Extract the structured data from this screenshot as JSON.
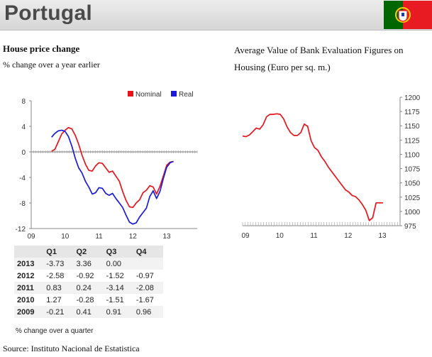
{
  "header": {
    "country": "Portugal"
  },
  "left_chart": {
    "title": "House price change",
    "subtitle": "% change over a year earlier"
  },
  "right_chart": {
    "title": "Average Value of Bank Evaluation Figures on Housing (Euro per sq. m.)"
  },
  "table": {
    "columns": [
      "",
      "Q1",
      "Q2",
      "Q3",
      "Q4"
    ],
    "rows": [
      [
        "2013",
        "-3.73",
        "3.36",
        "0.00",
        ""
      ],
      [
        "2012",
        "-2.58",
        "-0.92",
        "-1.52",
        "-0.97"
      ],
      [
        "2011",
        "0.83",
        "0.24",
        "-3.14",
        "-2.08"
      ],
      [
        "2010",
        "1.27",
        "-0.28",
        "-1.51",
        "-1.67"
      ],
      [
        "2009",
        "-0.21",
        "0.41",
        "0.91",
        "0.96"
      ]
    ],
    "note": "% change over a quarter"
  },
  "source": "Source: Instituto Nacional de Estatistica",
  "colors": {
    "nominal": "#e8141b",
    "real": "#1a1adc",
    "right_line": "#e8141b",
    "flag_green": "#006600",
    "flag_red": "#e81b23"
  },
  "icons": [
    "portugal-flag-icon"
  ],
  "chart_data": [
    {
      "type": "line",
      "title": "House price change",
      "subtitle": "% change over a year earlier",
      "xlabel": "",
      "ylabel": "",
      "ylim": [
        -12,
        8
      ],
      "yticks": [
        "8",
        "4",
        "0",
        "-4",
        "-8",
        "-12"
      ],
      "xticks": [
        "09",
        "10",
        "11",
        "12",
        "13"
      ],
      "legend": "top-right",
      "grid": false,
      "series": [
        {
          "name": "Nominal",
          "points": [
            [
              2009.6,
              0.1
            ],
            [
              2009.7,
              0.4
            ],
            [
              2009.8,
              1.6
            ],
            [
              2009.9,
              2.8
            ],
            [
              2010.0,
              3.4
            ],
            [
              2010.1,
              3.8
            ],
            [
              2010.2,
              3.6
            ],
            [
              2010.3,
              2.6
            ],
            [
              2010.4,
              1.2
            ],
            [
              2010.5,
              -0.5
            ],
            [
              2010.6,
              -1.9
            ],
            [
              2010.7,
              -2.9
            ],
            [
              2010.8,
              -3.0
            ],
            [
              2010.9,
              -2.2
            ],
            [
              2011.0,
              -1.7
            ],
            [
              2011.1,
              -1.8
            ],
            [
              2011.2,
              -2.5
            ],
            [
              2011.3,
              -3.2
            ],
            [
              2011.4,
              -3.0
            ],
            [
              2011.5,
              -3.8
            ],
            [
              2011.6,
              -4.6
            ],
            [
              2011.7,
              -6.2
            ],
            [
              2011.8,
              -7.6
            ],
            [
              2011.9,
              -8.6
            ],
            [
              2012.0,
              -8.7
            ],
            [
              2012.1,
              -8.0
            ],
            [
              2012.2,
              -7.5
            ],
            [
              2012.3,
              -6.4
            ],
            [
              2012.4,
              -6.0
            ],
            [
              2012.5,
              -5.3
            ],
            [
              2012.6,
              -5.5
            ],
            [
              2012.7,
              -6.6
            ],
            [
              2012.8,
              -5.4
            ],
            [
              2012.9,
              -3.8
            ],
            [
              2013.0,
              -2.1
            ],
            [
              2013.1,
              -1.6
            ],
            [
              2013.2,
              -1.5
            ]
          ]
        },
        {
          "name": "Real",
          "points": [
            [
              2009.6,
              2.3
            ],
            [
              2009.7,
              2.9
            ],
            [
              2009.8,
              3.3
            ],
            [
              2009.9,
              3.4
            ],
            [
              2010.0,
              3.2
            ],
            [
              2010.1,
              2.4
            ],
            [
              2010.2,
              0.9
            ],
            [
              2010.3,
              -1.0
            ],
            [
              2010.4,
              -2.5
            ],
            [
              2010.5,
              -3.3
            ],
            [
              2010.6,
              -4.6
            ],
            [
              2010.7,
              -5.5
            ],
            [
              2010.8,
              -6.6
            ],
            [
              2010.9,
              -6.4
            ],
            [
              2011.0,
              -5.6
            ],
            [
              2011.1,
              -5.7
            ],
            [
              2011.2,
              -6.5
            ],
            [
              2011.3,
              -6.8
            ],
            [
              2011.4,
              -6.5
            ],
            [
              2011.5,
              -7.3
            ],
            [
              2011.6,
              -8.0
            ],
            [
              2011.7,
              -8.7
            ],
            [
              2011.8,
              -9.9
            ],
            [
              2011.9,
              -11.0
            ],
            [
              2012.0,
              -11.3
            ],
            [
              2012.1,
              -11.1
            ],
            [
              2012.2,
              -10.2
            ],
            [
              2012.3,
              -9.5
            ],
            [
              2012.4,
              -8.8
            ],
            [
              2012.5,
              -7.0
            ],
            [
              2012.6,
              -6.1
            ],
            [
              2012.7,
              -7.3
            ],
            [
              2012.8,
              -6.2
            ],
            [
              2012.9,
              -4.2
            ],
            [
              2013.0,
              -2.4
            ],
            [
              2013.1,
              -1.7
            ],
            [
              2013.2,
              -1.5
            ]
          ]
        }
      ]
    },
    {
      "type": "line",
      "title": "Average Value of Bank Evaluation Figures on Housing (Euro per sq. m.)",
      "xlabel": "",
      "ylabel": "",
      "ylim": [
        975,
        1200
      ],
      "yticks": [
        "1200",
        "1175",
        "1150",
        "1125",
        "1100",
        "1075",
        "1050",
        "1025",
        "1000",
        "975"
      ],
      "xticks": [
        "09",
        "10",
        "11",
        "12",
        "13"
      ],
      "legend": "none",
      "grid": false,
      "series": [
        {
          "points": [
            [
              2009.0,
              1132
            ],
            [
              2009.1,
              1131
            ],
            [
              2009.2,
              1134
            ],
            [
              2009.3,
              1140
            ],
            [
              2009.4,
              1146
            ],
            [
              2009.5,
              1144
            ],
            [
              2009.6,
              1152
            ],
            [
              2009.7,
              1166
            ],
            [
              2009.8,
              1170
            ],
            [
              2009.9,
              1170
            ],
            [
              2010.0,
              1171
            ],
            [
              2010.1,
              1170
            ],
            [
              2010.2,
              1162
            ],
            [
              2010.3,
              1148
            ],
            [
              2010.4,
              1138
            ],
            [
              2010.5,
              1133
            ],
            [
              2010.6,
              1133
            ],
            [
              2010.7,
              1138
            ],
            [
              2010.8,
              1153
            ],
            [
              2010.9,
              1149
            ],
            [
              2011.0,
              1124
            ],
            [
              2011.1,
              1112
            ],
            [
              2011.2,
              1107
            ],
            [
              2011.3,
              1096
            ],
            [
              2011.4,
              1088
            ],
            [
              2011.5,
              1078
            ],
            [
              2011.6,
              1070
            ],
            [
              2011.7,
              1062
            ],
            [
              2011.8,
              1054
            ],
            [
              2011.9,
              1046
            ],
            [
              2012.0,
              1038
            ],
            [
              2012.1,
              1034
            ],
            [
              2012.2,
              1028
            ],
            [
              2012.3,
              1026
            ],
            [
              2012.4,
              1020
            ],
            [
              2012.5,
              1012
            ],
            [
              2012.6,
              1002
            ],
            [
              2012.7,
              984
            ],
            [
              2012.8,
              989
            ],
            [
              2012.9,
              1015
            ],
            [
              2013.0,
              1015
            ],
            [
              2013.1,
              1015
            ]
          ]
        }
      ]
    }
  ]
}
